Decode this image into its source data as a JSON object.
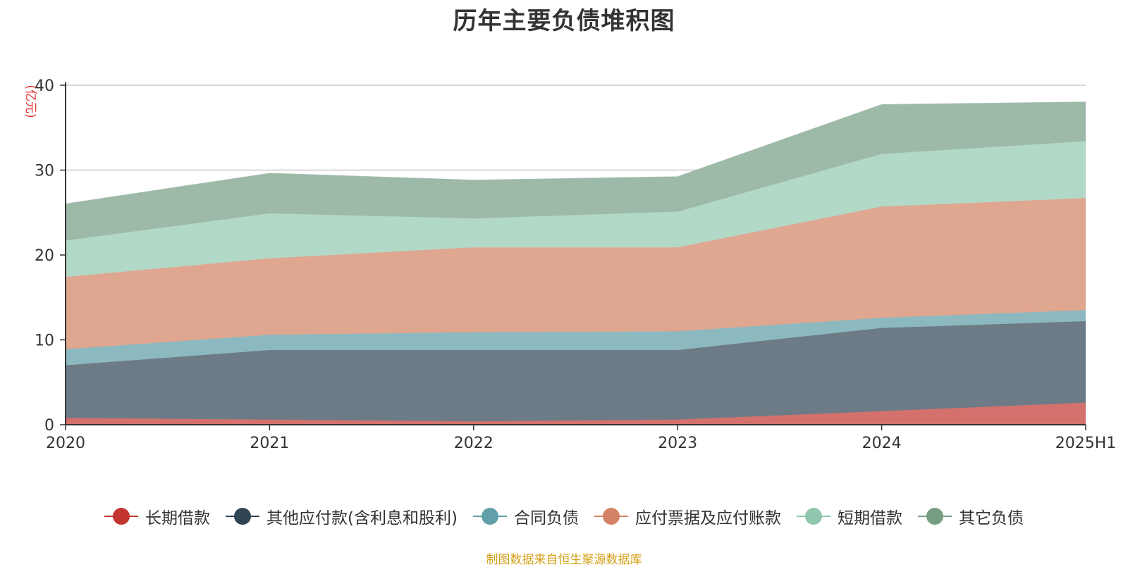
{
  "chart_data": {
    "type": "area",
    "stacked": true,
    "title": "历年主要负债堆积图",
    "unit_label": "(亿元)",
    "source_note": "制图数据来自恒生聚源数据库",
    "categories": [
      "2020",
      "2021",
      "2022",
      "2023",
      "2024",
      "2025H1"
    ],
    "ylim": [
      0,
      40
    ],
    "yticks": [
      0,
      10,
      20,
      30,
      40
    ],
    "grid": true,
    "legend_position": "bottom",
    "series": [
      {
        "name": "长期借款",
        "color": "#c23531",
        "fill": "#d4716d",
        "values": [
          0.8,
          0.6,
          0.4,
          0.6,
          1.6,
          2.6
        ]
      },
      {
        "name": "其他应付款(含利息和股利)",
        "color": "#2f4554",
        "fill": "#6d7b86",
        "values": [
          6.2,
          8.2,
          8.4,
          8.2,
          9.8,
          9.6
        ]
      },
      {
        "name": "合同负债",
        "color": "#61a0a8",
        "fill": "#8cb9bf",
        "values": [
          1.9,
          1.8,
          2.1,
          2.2,
          1.2,
          1.3
        ]
      },
      {
        "name": "应付票据及应付账款",
        "color": "#d48265",
        "fill": "#dfa690",
        "values": [
          8.5,
          9.0,
          10.0,
          9.9,
          13.1,
          13.2
        ]
      },
      {
        "name": "短期借款",
        "color": "#91c7ae",
        "fill": "#b2d8c7",
        "values": [
          4.3,
          5.3,
          3.4,
          4.2,
          6.2,
          6.7
        ]
      },
      {
        "name": "其它负债",
        "color": "#749f83",
        "fill": "#9db9a7",
        "values": [
          4.3,
          4.7,
          4.5,
          4.1,
          5.8,
          4.6
        ]
      }
    ]
  }
}
